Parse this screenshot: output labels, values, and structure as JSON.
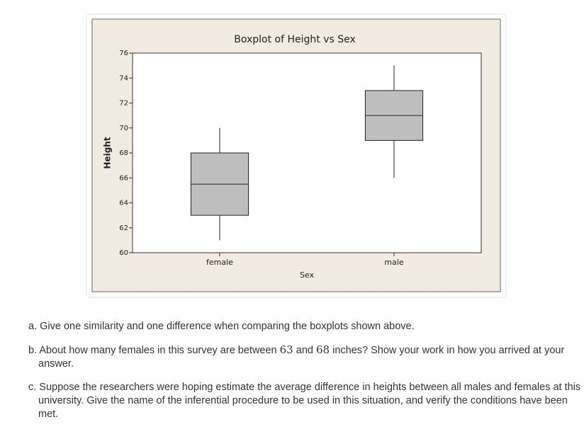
{
  "chart_data": {
    "type": "box",
    "title": "Boxplot of Height vs Sex",
    "x_label": "Sex",
    "y_label": "Height",
    "categories": [
      "female",
      "male"
    ],
    "boxes": [
      {
        "min": 61,
        "q1": 63,
        "median": 65.5,
        "q3": 68,
        "max": 70
      },
      {
        "min": 66,
        "q1": 69,
        "median": 71,
        "q3": 73,
        "max": 75
      }
    ],
    "color": "#bebebe",
    "ylim": [
      60,
      76
    ],
    "yticks": [
      60,
      62,
      64,
      66,
      68,
      70,
      72,
      74,
      76
    ],
    "grid": false
  },
  "questions": {
    "a": "a. Give one similarity and one difference when comparing the boxplots shown above.",
    "b": [
      "b. About how many females in this survey are between ",
      "63",
      " and ",
      "68",
      " inches? Show your work in how you arrived at your answer."
    ],
    "c": "c. Suppose the researchers were hoping estimate the average difference in heights between all males and females at this university.  Give the name of the inferential procedure to be used in this situation, and verify the conditions have been met."
  }
}
